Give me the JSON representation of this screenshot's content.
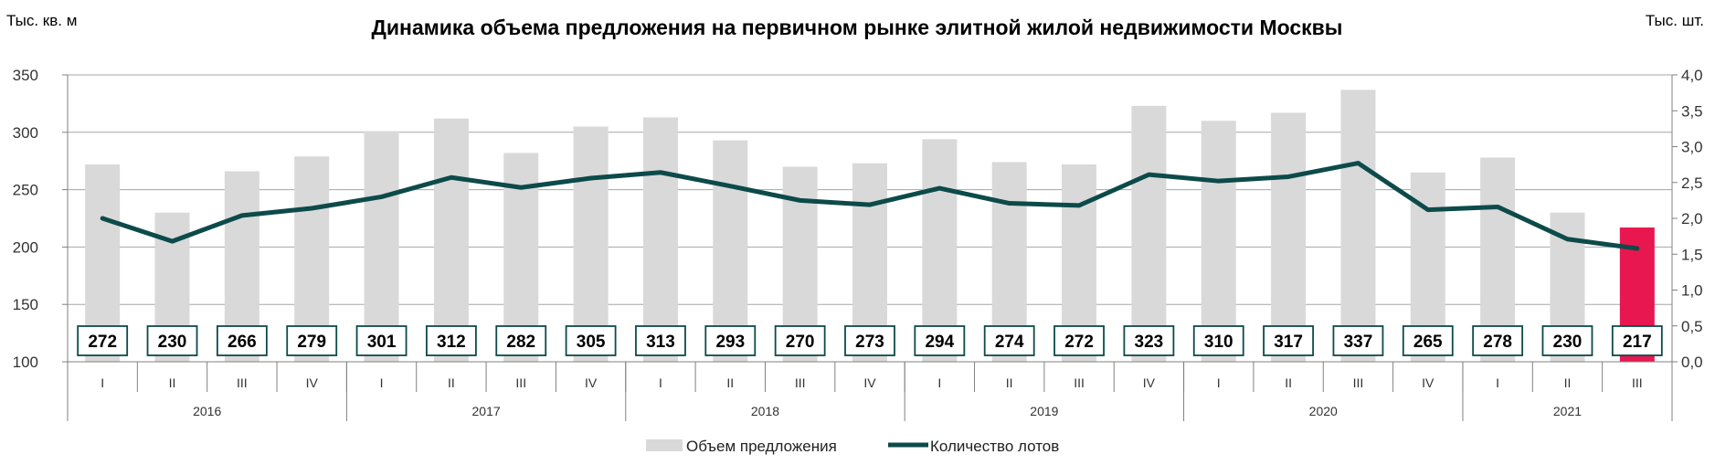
{
  "chart_data": {
    "type": "bar",
    "title": "Динамика объема предложения на первичном рынке элитной жилой недвижимости Москвы",
    "ylabel_left": "Тыс. кв. м",
    "ylabel_right": "Тыс. шт.",
    "ylim_left": [
      100,
      350
    ],
    "ylim_right": [
      0,
      4
    ],
    "left_ticks": [
      "100",
      "150",
      "200",
      "250",
      "300",
      "350"
    ],
    "right_ticks": [
      "0,0",
      "0,5",
      "1,0",
      "1,5",
      "2,0",
      "2,5",
      "3,0",
      "3,5",
      "4,0"
    ],
    "grid": true,
    "legend_position": "bottom",
    "years": [
      {
        "label": "2016",
        "quarters": 4
      },
      {
        "label": "2017",
        "quarters": 4
      },
      {
        "label": "2018",
        "quarters": 4
      },
      {
        "label": "2019",
        "quarters": 4
      },
      {
        "label": "2020",
        "quarters": 4
      },
      {
        "label": "2021",
        "quarters": 3
      }
    ],
    "categories": [
      "I",
      "II",
      "III",
      "IV",
      "I",
      "II",
      "III",
      "IV",
      "I",
      "II",
      "III",
      "IV",
      "I",
      "II",
      "III",
      "IV",
      "I",
      "II",
      "III",
      "IV",
      "I",
      "II",
      "III"
    ],
    "series": [
      {
        "name": "Объем предложения",
        "kind": "bar",
        "axis": "left",
        "color": "#d9d9d9",
        "highlight_color": "#e8174f",
        "highlight_index": 22,
        "values": [
          272,
          230,
          266,
          279,
          301,
          312,
          282,
          305,
          313,
          293,
          270,
          273,
          294,
          274,
          272,
          323,
          310,
          317,
          337,
          265,
          278,
          230,
          217
        ]
      },
      {
        "name": "Количество лотов",
        "kind": "line",
        "axis": "right",
        "color": "#0d4a4a",
        "values": [
          2.0,
          1.68,
          2.04,
          2.14,
          2.3,
          2.57,
          2.43,
          2.56,
          2.64,
          2.45,
          2.25,
          2.19,
          2.42,
          2.21,
          2.18,
          2.61,
          2.52,
          2.58,
          2.77,
          2.12,
          2.16,
          1.71,
          1.58
        ]
      }
    ]
  }
}
